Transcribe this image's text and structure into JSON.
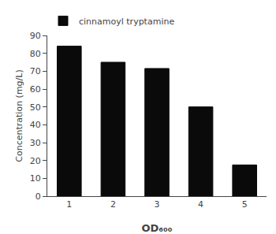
{
  "chart_data": {
    "type": "bar",
    "xlabel": "OD₆₀₀",
    "ylabel": "Concentration (mg/L)",
    "categories": [
      1,
      2,
      3,
      4,
      5
    ],
    "series": [
      {
        "name": "cinnamoyl tryptamine",
        "color": "#0a0a0a",
        "values": [
          84,
          75,
          71.5,
          50,
          17.5
        ]
      }
    ],
    "ylim": [
      0,
      90
    ],
    "yticks": [
      0,
      10,
      20,
      30,
      40,
      50,
      60,
      70,
      80,
      90
    ],
    "grid": false,
    "legend": "upper left"
  }
}
